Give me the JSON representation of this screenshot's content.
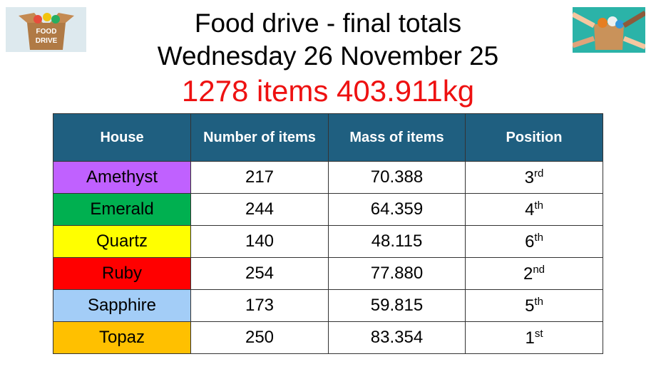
{
  "header": {
    "title": "Food drive - final totals",
    "date": "Wednesday 26 November 25",
    "totals": "1278 items 403.911kg"
  },
  "images": [
    {
      "label_top": "FOOD",
      "label_bottom": "DRIVE"
    }
  ],
  "table": {
    "columns": [
      "House",
      "Number of items",
      "Mass of items",
      "Position"
    ],
    "rows": [
      {
        "house": "Amethyst",
        "color": "#c061ff",
        "items": "217",
        "mass": "70.388",
        "position": {
          "number": "3",
          "suffix": "rd"
        }
      },
      {
        "house": "Emerald",
        "color": "#00b050",
        "items": "244",
        "mass": "64.359",
        "position": {
          "number": "4",
          "suffix": "th"
        }
      },
      {
        "house": "Quartz",
        "color": "#ffff00",
        "items": "140",
        "mass": "48.115",
        "position": {
          "number": "6",
          "suffix": "th"
        }
      },
      {
        "house": "Ruby",
        "color": "#ff0000",
        "items": "254",
        "mass": "77.880",
        "position": {
          "number": "2",
          "suffix": "nd"
        }
      },
      {
        "house": "Sapphire",
        "color": "#a3cdf7",
        "items": "173",
        "mass": "59.815",
        "position": {
          "number": "5",
          "suffix": "th"
        }
      },
      {
        "house": "Topaz",
        "color": "#ffc000",
        "items": "250",
        "mass": "83.354",
        "position": {
          "number": "1",
          "suffix": "st"
        }
      }
    ]
  }
}
